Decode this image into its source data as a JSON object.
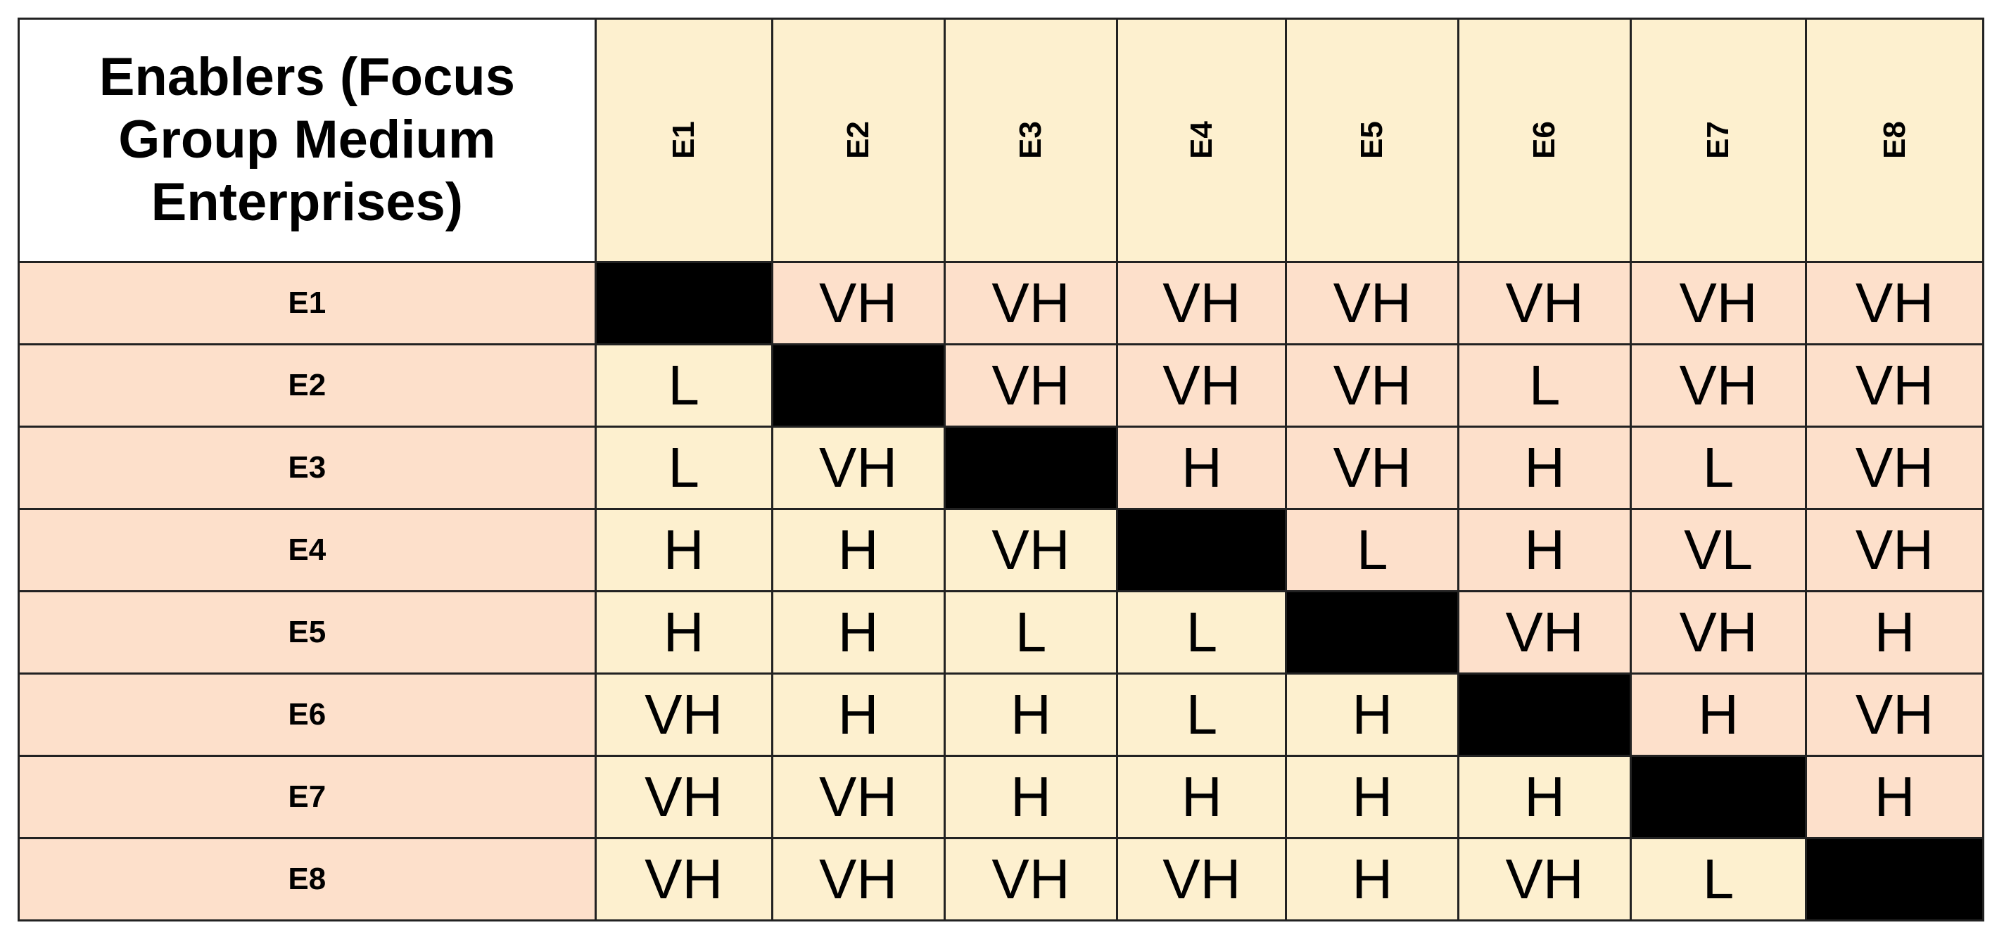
{
  "table": {
    "corner_label": "Enablers (Focus Group Medium Enterprises)",
    "columns": [
      "E1",
      "E2",
      "E3",
      "E4",
      "E5",
      "E6",
      "E7",
      "E8"
    ],
    "rows": [
      {
        "label": "E1",
        "cells": [
          "",
          "VH",
          "VH",
          "VH",
          "VH",
          "VH",
          "VH",
          "VH"
        ]
      },
      {
        "label": "E2",
        "cells": [
          "L",
          "",
          "VH",
          "VH",
          "VH",
          "L",
          "VH",
          "VH"
        ]
      },
      {
        "label": "E3",
        "cells": [
          "L",
          "VH",
          "",
          "H",
          "VH",
          "H",
          "L",
          "VH"
        ]
      },
      {
        "label": "E4",
        "cells": [
          "H",
          "H",
          "VH",
          "",
          "L",
          "H",
          "VL",
          "VH"
        ]
      },
      {
        "label": "E5",
        "cells": [
          "H",
          "H",
          "L",
          "L",
          "",
          "VH",
          "VH",
          "H"
        ]
      },
      {
        "label": "E6",
        "cells": [
          "VH",
          "H",
          "H",
          "L",
          "H",
          "",
          "H",
          "VH"
        ]
      },
      {
        "label": "E7",
        "cells": [
          "VH",
          "VH",
          "H",
          "H",
          "H",
          "H",
          "",
          "H"
        ]
      },
      {
        "label": "E8",
        "cells": [
          "VH",
          "VH",
          "VH",
          "VH",
          "H",
          "VH",
          "L",
          ""
        ]
      }
    ]
  },
  "colors": {
    "upper_triangle": "#fde0cb",
    "lower_triangle": "#fdf0cf",
    "diagonal": "#000000",
    "header_background": "#fdf0cf",
    "row_header_background": "#fde0cb",
    "border": "#222222"
  }
}
